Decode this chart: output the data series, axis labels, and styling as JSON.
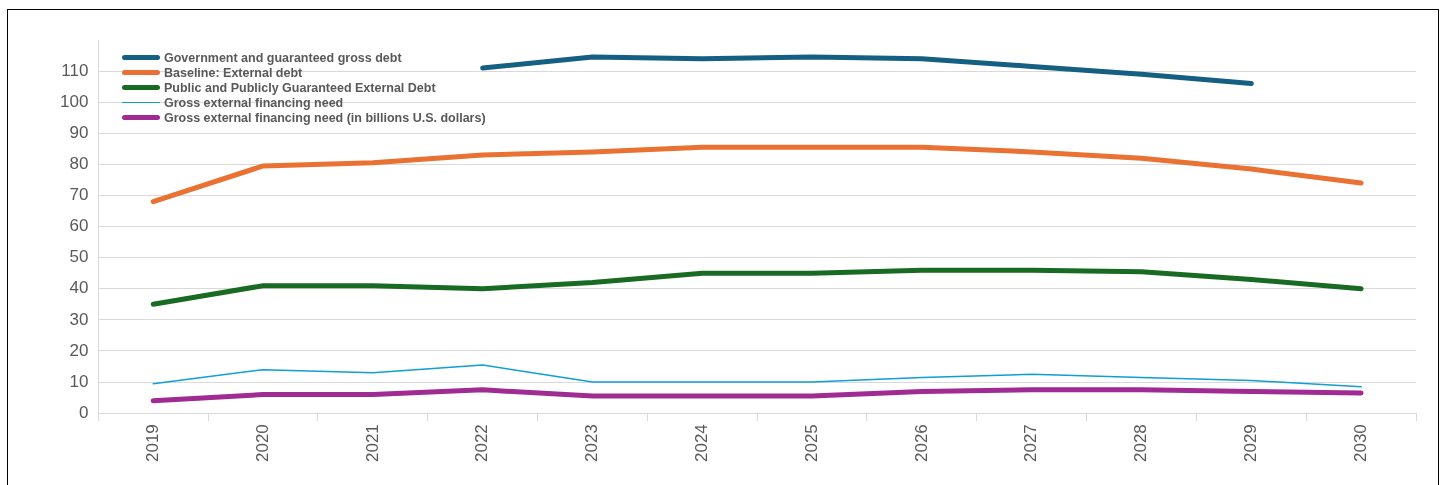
{
  "chart_data": {
    "type": "line",
    "categories": [
      "2019",
      "2020",
      "2021",
      "2022",
      "2023",
      "2024",
      "2025",
      "2026",
      "2027",
      "2028",
      "2029",
      "2030"
    ],
    "series": [
      {
        "name": "Government and guaranteed gross debt",
        "color": "#155f82",
        "values": [
          null,
          null,
          null,
          111,
          114.5,
          114,
          114.5,
          114,
          111.5,
          109,
          106,
          null
        ]
      },
      {
        "name": "Baseline: External debt",
        "color": "#e97132",
        "values": [
          68,
          79.5,
          80.5,
          83,
          84,
          85.5,
          85.5,
          85.5,
          84,
          82,
          78.5,
          74
        ]
      },
      {
        "name": "Public and Publicly Guaranteed External Debt",
        "color": "#196b24",
        "values": [
          35,
          41,
          41,
          40,
          42,
          45,
          45,
          46,
          46,
          45.5,
          43,
          40
        ]
      },
      {
        "name": "Gross external financing need",
        "color": "#0f9ed5",
        "values": [
          9.5,
          14,
          13,
          15.5,
          10,
          10,
          10,
          11.5,
          12.5,
          11.5,
          10.5,
          8.5
        ]
      },
      {
        "name": "Gross external financing need (in billions U.S. dollars)",
        "color": "#a02b93",
        "values": [
          4,
          6,
          6,
          7.5,
          5.5,
          5.5,
          5.5,
          7,
          7.5,
          7.5,
          7,
          6.5
        ]
      }
    ],
    "ylim": [
      0,
      120
    ],
    "yticks": [
      0,
      10,
      20,
      30,
      40,
      50,
      60,
      70,
      80,
      90,
      100,
      110
    ],
    "grid": "y",
    "legend": "top left",
    "marker": "none",
    "line_style": "solid"
  }
}
